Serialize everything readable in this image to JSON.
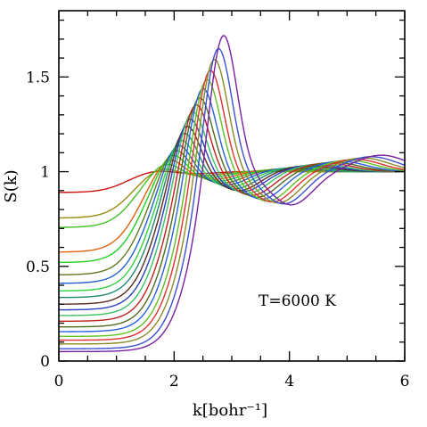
{
  "chart_data": {
    "type": "line",
    "title": "",
    "xlabel": "k[bohr⁻¹]",
    "ylabel": "S(k)",
    "xlim": [
      0,
      6
    ],
    "ylim": [
      0,
      1.85
    ],
    "xticks": [
      0,
      2,
      4,
      6
    ],
    "xtick_labels": [
      "0",
      "2",
      "4",
      "6"
    ],
    "yticks": [
      0,
      0.5,
      1,
      1.5
    ],
    "ytick_labels": [
      "0",
      "0.5",
      "1",
      "1.5"
    ],
    "grid": false,
    "legend": "none",
    "annotation": "T=6000 K",
    "series_colors": [
      "#d01010",
      "#9a8a10",
      "#40c020",
      "#e06010",
      "#20d020",
      "#607a20",
      "#2060d0",
      "#30d040",
      "#208a70",
      "#5a2a20",
      "#2a40c0",
      "#3ac060",
      "#c02020",
      "#506a20",
      "#2a60e0",
      "#60c020",
      "#e03030",
      "#8a8a2a",
      "#3a50d0",
      "#7a20a0"
    ],
    "s0_values": [
      0.89,
      0.755,
      0.705,
      0.575,
      0.52,
      0.455,
      0.41,
      0.37,
      0.335,
      0.3,
      0.27,
      0.24,
      0.21,
      0.18,
      0.155,
      0.13,
      0.11,
      0.09,
      0.065,
      0.05
    ],
    "peak_k": [
      1.7,
      1.78,
      1.84,
      1.9,
      1.95,
      2.0,
      2.05,
      2.1,
      2.15,
      2.2,
      2.25,
      2.3,
      2.36,
      2.42,
      2.48,
      2.55,
      2.61,
      2.68,
      2.75,
      2.84
    ],
    "peak_height": [
      1.01,
      1.03,
      1.06,
      1.09,
      1.12,
      1.15,
      1.18,
      1.21,
      1.25,
      1.29,
      1.33,
      1.37,
      1.41,
      1.45,
      1.5,
      1.55,
      1.6,
      1.66,
      1.72,
      1.79
    ],
    "min_height": [
      0.99,
      0.98,
      0.97,
      0.96,
      0.95,
      0.94,
      0.93,
      0.92,
      0.91,
      0.9,
      0.895,
      0.885,
      0.875,
      0.865,
      0.855,
      0.845,
      0.84,
      0.835,
      0.83,
      0.825
    ]
  }
}
